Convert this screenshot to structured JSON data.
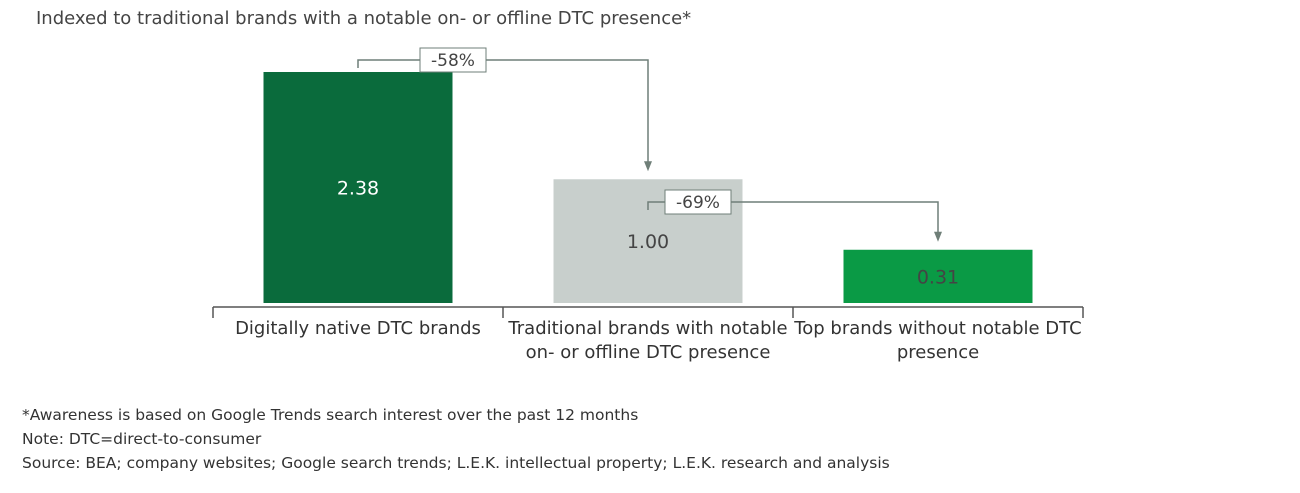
{
  "chart_data": {
    "type": "bar",
    "title": "",
    "subtitle": "Indexed to traditional brands with a notable on- or offline DTC presence*",
    "categories": [
      "Digitally native DTC brands",
      "Traditional brands with notable on- or offline DTC presence",
      "Top brands without notable DTC presence"
    ],
    "values": [
      2.38,
      1.0,
      0.31
    ],
    "value_labels": [
      "2.38",
      "1.00",
      "0.31"
    ],
    "colors": [
      "#0a6b3c",
      "#c8cfcc",
      "#0a9a45"
    ],
    "changes": [
      {
        "from": 0,
        "to": 1,
        "label": "-58%"
      },
      {
        "from": 1,
        "to": 2,
        "label": "-69%"
      }
    ],
    "connector_color": "#6f7f78",
    "xlabel": "",
    "ylabel": "",
    "grid": false
  },
  "footnotes": [
    "*Awareness is based on Google Trends search interest over the past 12 months",
    "Note: DTC=direct-to-consumer",
    "Source: BEA; company websites; Google search trends; L.E.K. intellectual property; L.E.K. research and analysis"
  ]
}
